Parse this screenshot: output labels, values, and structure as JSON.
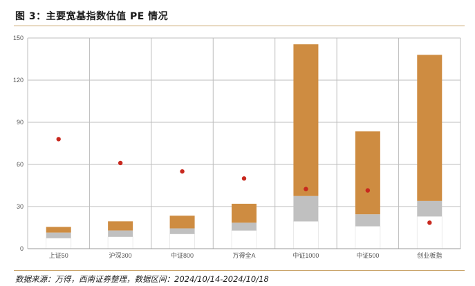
{
  "header": {
    "title": "图 3：主要宽基指数估值 PE 情况"
  },
  "footer": {
    "source": "数据来源：万得，西南证券整理，数据区间：2024/10/14-2024/10/18"
  },
  "colors": {
    "low_segment": "#ffffff",
    "mid_segment": "#c0c0c0",
    "high_segment": "#ce8c41",
    "current_point": "#c8281e",
    "grid": "#bdbdbd",
    "rule": "#c9a46a"
  },
  "chart_data": {
    "type": "bar",
    "stacked": true,
    "title": "图 3：主要宽基指数估值 PE 情况",
    "xlabel": "",
    "ylabel": "",
    "ylim": [
      0,
      150
    ],
    "yticks": [
      0,
      30,
      60,
      90,
      120,
      150
    ],
    "grid": true,
    "categories": [
      "上证50",
      "沪深300",
      "中证800",
      "万得全A",
      "中证1000",
      "中证500",
      "创业板指"
    ],
    "series": [
      {
        "kind": "bar",
        "values": [
          7.5,
          8.5,
          10.5,
          13,
          19.5,
          16,
          23
        ]
      },
      {
        "kind": "bar",
        "values": [
          4,
          4.5,
          4,
          5.5,
          18,
          8.5,
          11
        ]
      },
      {
        "kind": "bar",
        "values": [
          4,
          6.5,
          9,
          13.5,
          108,
          59,
          104
        ]
      },
      {
        "kind": "scatter",
        "values": [
          78,
          61,
          55,
          50,
          42.5,
          41.5,
          18.5
        ]
      }
    ]
  }
}
